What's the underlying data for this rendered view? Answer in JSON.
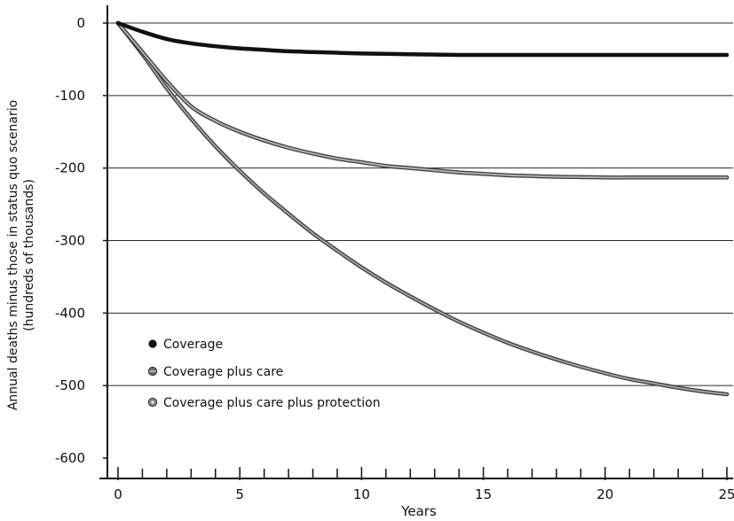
{
  "chart_data": {
    "type": "line",
    "title": "",
    "xlabel": "Years",
    "ylabel": "Annual deaths minus those in status quo scenario",
    "ylabel_sub": "(hundreds of thousands)",
    "xlim": [
      0,
      25
    ],
    "ylim": [
      -600,
      0
    ],
    "x_major_ticks": [
      0,
      5,
      10,
      15,
      20,
      25
    ],
    "x_minor_step": 1,
    "y_ticks": [
      0,
      -100,
      -200,
      -300,
      -400,
      -500,
      -600
    ],
    "x_tick_labels": [
      "0",
      "5",
      "10",
      "15",
      "20",
      "25"
    ],
    "y_tick_labels": [
      "0",
      "-100",
      "-200",
      "-300",
      "-400",
      "-500",
      "-600"
    ],
    "grid": "horizontal",
    "legend_placement": "lower-left",
    "x": [
      0,
      1,
      2,
      3,
      4,
      5,
      6,
      7,
      8,
      9,
      10,
      11,
      12,
      13,
      14,
      15,
      16,
      17,
      18,
      19,
      20,
      21,
      22,
      23,
      24,
      25
    ],
    "series": [
      {
        "name": "Coverage",
        "color": "#111111",
        "marker": "filled-circle",
        "values": [
          0,
          -12,
          -22,
          -28,
          -32,
          -35,
          -37,
          -39,
          -40,
          -41,
          -42,
          -42.5,
          -43,
          -43.5,
          -44,
          -44,
          -44,
          -44,
          -44,
          -44,
          -44,
          -44,
          -44,
          -44,
          -44,
          -44
        ]
      },
      {
        "name": "Coverage plus care",
        "color": "#7a7a7a",
        "marker": "striped-circle",
        "values": [
          0,
          -40,
          -80,
          -115,
          -135,
          -150,
          -162,
          -172,
          -180,
          -187,
          -192,
          -197,
          -200,
          -203,
          -206,
          -208,
          -210,
          -211,
          -212,
          -212.5,
          -213,
          -213,
          -213,
          -213,
          -213,
          -213
        ]
      },
      {
        "name": "Coverage plus care plus protection",
        "color": "#8c8c8c",
        "marker": "dotted-circle",
        "values": [
          0,
          -43,
          -90,
          -132,
          -170,
          -204,
          -235,
          -263,
          -290,
          -314,
          -337,
          -358,
          -377,
          -395,
          -412,
          -427,
          -441,
          -453,
          -464,
          -474,
          -483,
          -491,
          -497,
          -503,
          -508,
          -512
        ]
      }
    ]
  }
}
